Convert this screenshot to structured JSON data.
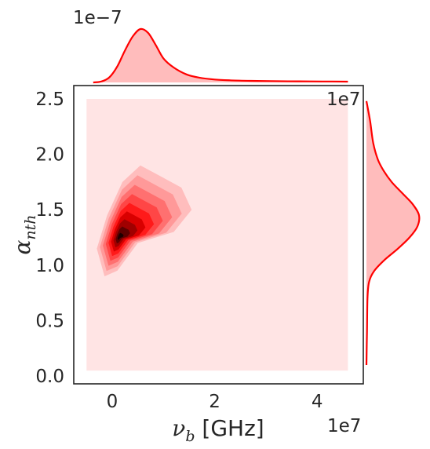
{
  "chart_data": {
    "type": "jointplot-kde",
    "xlabel": {
      "base": "ν",
      "sub": "b",
      "suffix": " [GHz]"
    },
    "ylabel": {
      "base": "α",
      "sub": "nth"
    },
    "x_multiplier": "1e7",
    "y_multiplier": "1e7",
    "top_marginal_multiplier": "1e−7",
    "xlim": [
      -0.75,
      4.9
    ],
    "ylim": [
      -0.07,
      2.62
    ],
    "x_ticks": [
      0,
      2,
      4
    ],
    "x_tick_labels": [
      "0",
      "2",
      "4"
    ],
    "y_ticks": [
      0.0,
      0.5,
      1.0,
      1.5,
      2.0,
      2.5
    ],
    "y_tick_labels": [
      "0.0",
      "0.5",
      "1.0",
      "1.5",
      "2.0",
      "2.5"
    ],
    "grid": false,
    "colors": {
      "line": "#ff0000",
      "marginal_fill": "#ffbcbc",
      "background_level": "#ffe4e4",
      "levels": [
        "#ffe4e4",
        "#ffbdbd",
        "#ff9999",
        "#ff7070",
        "#ff4646",
        "#ff1a1a",
        "#d90000",
        "#a00000",
        "#5e0000",
        "#1e0000"
      ]
    },
    "x_density": {
      "x": [
        -0.37,
        -0.2,
        -0.05,
        0.1,
        0.25,
        0.4,
        0.55,
        0.7,
        0.85,
        1.0,
        1.2,
        1.45,
        1.7,
        2.0,
        2.3,
        2.7,
        3.1,
        3.6,
        4.1,
        4.6
      ],
      "density": [
        0.0,
        0.02,
        0.1,
        0.3,
        0.6,
        0.86,
        1.0,
        0.93,
        0.7,
        0.45,
        0.28,
        0.15,
        0.09,
        0.055,
        0.04,
        0.03,
        0.025,
        0.02,
        0.018,
        0.015
      ]
    },
    "y_density": {
      "y": [
        0.1,
        0.4,
        0.7,
        0.85,
        0.95,
        1.05,
        1.15,
        1.25,
        1.35,
        1.45,
        1.55,
        1.65,
        1.75,
        1.85,
        1.95,
        2.1,
        2.3,
        2.48
      ],
      "density": [
        0.0,
        0.01,
        0.02,
        0.05,
        0.15,
        0.35,
        0.6,
        0.82,
        0.97,
        1.0,
        0.88,
        0.68,
        0.48,
        0.33,
        0.22,
        0.13,
        0.07,
        0.0
      ]
    },
    "kde_levels": [
      {
        "center": [
          0.18,
          1.25
        ],
        "poly": [
          [
            -0.15,
            0.9
          ],
          [
            0.1,
            0.95
          ],
          [
            0.5,
            1.2
          ],
          [
            0.85,
            1.25
          ],
          [
            1.2,
            1.3
          ],
          [
            1.55,
            1.5
          ],
          [
            1.35,
            1.7
          ],
          [
            0.95,
            1.8
          ],
          [
            0.55,
            1.9
          ],
          [
            0.2,
            1.75
          ],
          [
            -0.1,
            1.45
          ],
          [
            -0.3,
            1.15
          ]
        ]
      }
    ],
    "kde_background_extent": {
      "x": [
        -0.5,
        4.6
      ],
      "y": [
        0.05,
        2.5
      ]
    }
  }
}
